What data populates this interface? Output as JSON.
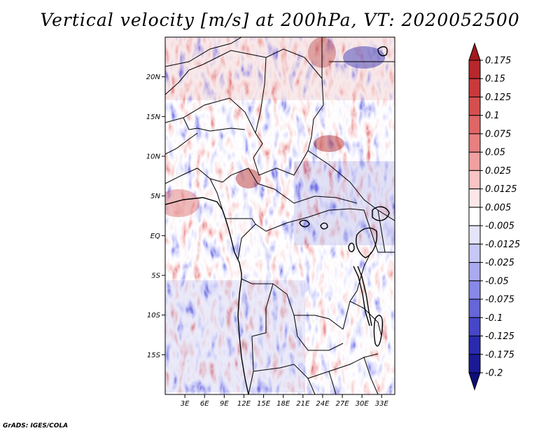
{
  "title": "Vertical velocity [m/s] at 200hPa, VT: 2020052500",
  "credit": "GrADS: IGES/COLA",
  "chart_data": {
    "type": "heatmap",
    "variable": "Vertical velocity",
    "units": "m/s",
    "level": "200hPa",
    "valid_time": "2020052500",
    "lon_range": [
      0,
      35
    ],
    "lat_range": [
      -20,
      25
    ],
    "x_ticks": [
      {
        "value": 3,
        "label": "3E"
      },
      {
        "value": 6,
        "label": "6E"
      },
      {
        "value": 9,
        "label": "9E"
      },
      {
        "value": 12,
        "label": "12E"
      },
      {
        "value": 15,
        "label": "15E"
      },
      {
        "value": 18,
        "label": "18E"
      },
      {
        "value": 21,
        "label": "21E"
      },
      {
        "value": 24,
        "label": "24E"
      },
      {
        "value": 27,
        "label": "27E"
      },
      {
        "value": 30,
        "label": "30E"
      },
      {
        "value": 33,
        "label": "33E"
      }
    ],
    "y_ticks": [
      {
        "value": 20,
        "label": "20N"
      },
      {
        "value": 15,
        "label": "15N"
      },
      {
        "value": 10,
        "label": "10N"
      },
      {
        "value": 5,
        "label": "5N"
      },
      {
        "value": 0,
        "label": "EQ"
      },
      {
        "value": -5,
        "label": "5S"
      },
      {
        "value": -10,
        "label": "10S"
      },
      {
        "value": -15,
        "label": "15S"
      }
    ],
    "colorbar": {
      "levels": [
        "0.175",
        "0.15",
        "0.125",
        "0.1",
        "0.075",
        "0.05",
        "0.025",
        "0.0125",
        "0.005",
        "-0.005",
        "-0.0125",
        "-0.025",
        "-0.05",
        "-0.075",
        "-0.1",
        "-0.125",
        "-0.175",
        "-0.2"
      ],
      "colors": [
        "#a11a1e",
        "#b8272b",
        "#c9393c",
        "#d64f4f",
        "#e06666",
        "#e88080",
        "#f0a0a0",
        "#f8c4c4",
        "#fde6e6",
        "#ffffff",
        "#e4e4fc",
        "#c8c8f6",
        "#aaaaf0",
        "#8888e6",
        "#6666d8",
        "#4646c8",
        "#2a2ab0",
        "#1a1a96",
        "#0e0e7a"
      ]
    }
  }
}
